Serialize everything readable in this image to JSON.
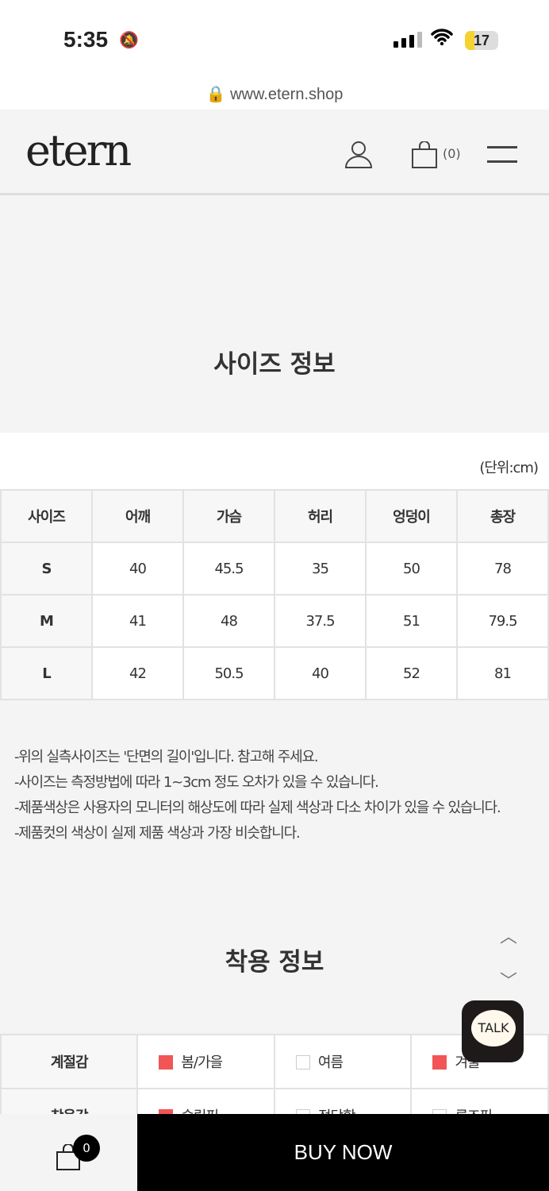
{
  "status": {
    "time": "5:35",
    "battery": "17"
  },
  "browser": {
    "url": "www.etern.shop"
  },
  "header": {
    "logo": "etern",
    "cart_count": "(0)"
  },
  "size_section": {
    "title": "사이즈 정보",
    "unit": "(단위:cm)",
    "headers": [
      "사이즈",
      "어깨",
      "가슴",
      "허리",
      "엉덩이",
      "총장"
    ],
    "rows": [
      [
        "S",
        "40",
        "45.5",
        "35",
        "50",
        "78"
      ],
      [
        "M",
        "41",
        "48",
        "37.5",
        "51",
        "79.5"
      ],
      [
        "L",
        "42",
        "50.5",
        "40",
        "52",
        "81"
      ]
    ],
    "notes": [
      "-위의 실측사이즈는 '단면의 길이'입니다. 참고해 주세요.",
      "-사이즈는 측정방법에 따라 1~3cm 정도 오차가 있을 수 있습니다.",
      "-제품색상은 사용자의 모니터의 해상도에 따라 실제 색상과 다소 차이가 있을 수 있습니다.",
      "-제품컷의 색상이 실제 제품 색상과 가장 비슷합니다."
    ]
  },
  "fit_section": {
    "title": "착용 정보",
    "rows": [
      {
        "label": "계절감",
        "options": [
          {
            "text": "봄/가을",
            "checked": true
          },
          {
            "text": "여름",
            "checked": false
          },
          {
            "text": "겨울",
            "checked": true
          }
        ]
      },
      {
        "label": "착용감",
        "options": [
          {
            "text": "슬림핏",
            "checked": true
          },
          {
            "text": "적당함",
            "checked": false
          },
          {
            "text": "루즈핏",
            "checked": false
          }
        ]
      }
    ]
  },
  "talk": {
    "label": "TALK"
  },
  "bottom": {
    "cart_badge": "0",
    "buy_label": "BUY NOW"
  },
  "colors": {
    "accent": "#f25555",
    "buy_bg": "#000000"
  }
}
